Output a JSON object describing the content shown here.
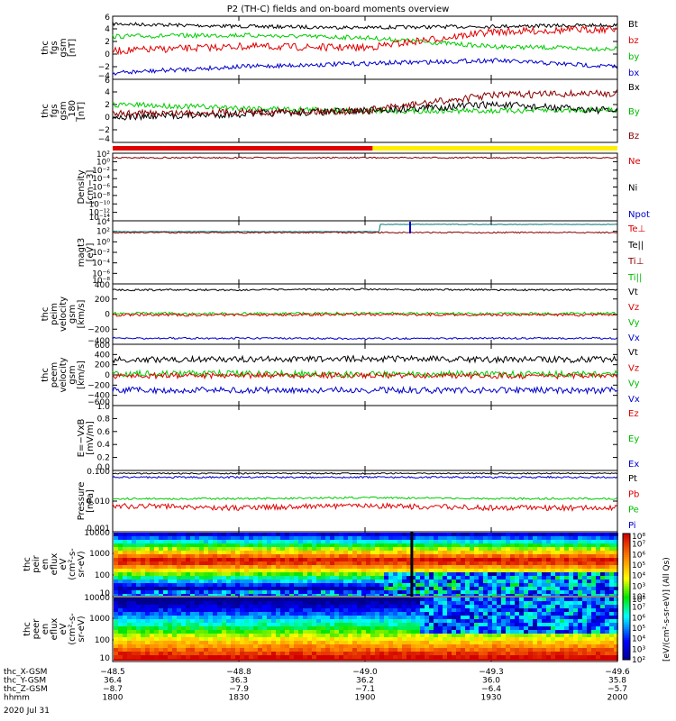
{
  "title": "P2 (TH-C) fields and on-board moments overview",
  "date": "2020 Jul 31",
  "colors": {
    "black": "#000000",
    "red": "#e00000",
    "green": "#00cc00",
    "blue": "#0000cc",
    "darkred": "#880000",
    "yellow": "#ffee00"
  },
  "panels": [
    {
      "id": "fgs",
      "ylabel": [
        "thc",
        "fgs",
        "gsm",
        "[nT]"
      ],
      "ticks": [
        "6",
        "4",
        "2",
        "0",
        "−2",
        "−4"
      ],
      "legend": [
        {
          "t": "Bt",
          "c": "#000"
        },
        {
          "t": "bz",
          "c": "#d00"
        },
        {
          "t": "by",
          "c": "#0b0"
        },
        {
          "t": "bx",
          "c": "#00c"
        }
      ]
    },
    {
      "id": "fgs180",
      "ylabel": [
        "thc",
        "fgs",
        "gsm",
        "_180",
        "[nT]"
      ],
      "ticks": [
        "6",
        "4",
        "2",
        "0",
        "−2",
        "−4"
      ],
      "legend": [
        {
          "t": "Bx",
          "c": "#000"
        },
        {
          "t": "By",
          "c": "#0b0"
        },
        {
          "t": "Bz",
          "c": "#800"
        }
      ]
    },
    {
      "id": "density",
      "ylabel": [
        "Density",
        "[cm−3]"
      ],
      "ticks": [
        "10²",
        "10⁰",
        "10⁻²",
        "10⁻⁴",
        "10⁻⁶",
        "10⁻⁸",
        "10⁻¹⁰",
        "10⁻¹²",
        "10⁻¹⁴"
      ],
      "legend": [
        {
          "t": "Ne",
          "c": "#d00"
        },
        {
          "t": "Ni",
          "c": "#000"
        },
        {
          "t": "Npot",
          "c": "#00c"
        }
      ]
    },
    {
      "id": "temp",
      "ylabel": [
        "magt3",
        "[eV]"
      ],
      "ticks": [
        "10⁴",
        "10²",
        "10⁰",
        "10⁻²",
        "10⁻⁴",
        "10⁻⁶",
        "10⁻⁸"
      ],
      "legend": [
        {
          "t": "Te⊥",
          "c": "#d00"
        },
        {
          "t": "Te||",
          "c": "#000"
        },
        {
          "t": "Ti⊥",
          "c": "#800"
        },
        {
          "t": "Ti||",
          "c": "#0b0"
        }
      ]
    },
    {
      "id": "peim",
      "ylabel": [
        "thc",
        "peim",
        "velocity",
        "gsm",
        "[km/s]"
      ],
      "ticks": [
        "400",
        "200",
        "0",
        "−200",
        "−400"
      ],
      "legend": [
        {
          "t": "Vt",
          "c": "#000"
        },
        {
          "t": "Vz",
          "c": "#d00"
        },
        {
          "t": "Vy",
          "c": "#0b0"
        },
        {
          "t": "Vx",
          "c": "#00c"
        }
      ]
    },
    {
      "id": "peem",
      "ylabel": [
        "thc",
        "peem",
        "velocity",
        "gsm",
        "[km/s]"
      ],
      "ticks": [
        "600",
        "400",
        "200",
        "0",
        "−200",
        "−400",
        "−600"
      ],
      "legend": [
        {
          "t": "Vt",
          "c": "#000"
        },
        {
          "t": "Vz",
          "c": "#d00"
        },
        {
          "t": "Vy",
          "c": "#0b0"
        },
        {
          "t": "Vx",
          "c": "#00c"
        }
      ]
    },
    {
      "id": "efield",
      "ylabel": [
        "E=−VxB",
        "[mV/m]"
      ],
      "ticks": [
        "1.0",
        "0.8",
        "0.6",
        "0.4",
        "0.2",
        "0.0"
      ],
      "legend": [
        {
          "t": "Ez",
          "c": "#d00"
        },
        {
          "t": "Ey",
          "c": "#0b0"
        },
        {
          "t": "Ex",
          "c": "#00c"
        }
      ]
    },
    {
      "id": "pressure",
      "ylabel": [
        "Pressure",
        "[nPa]"
      ],
      "ticks": [
        "0.100",
        "0.010",
        "0.001"
      ],
      "legend": [
        {
          "t": "Pt",
          "c": "#000"
        },
        {
          "t": "Pb",
          "c": "#d00"
        },
        {
          "t": "Pe",
          "c": "#0b0"
        },
        {
          "t": "Pi",
          "c": "#00c"
        }
      ]
    },
    {
      "id": "peir",
      "ylabel": [
        "thc",
        "peir",
        "en",
        "eflux",
        "eV",
        "(cm²-s-",
        "sr-eV)"
      ],
      "ticks": [
        "10000",
        "1000",
        "100",
        "10"
      ],
      "legend": []
    },
    {
      "id": "peer",
      "ylabel": [
        "thc",
        "peer",
        "en",
        "eflux",
        "eV",
        "(cm²-s-",
        "sr-eV)"
      ],
      "ticks": [
        "10000",
        "1000",
        "100",
        "10"
      ],
      "legend": []
    }
  ],
  "colorbar": {
    "ticks": [
      "10⁸",
      "10⁷",
      "10⁶",
      "10⁵",
      "10⁴",
      "10³",
      "10²"
    ],
    "label": "[eV/(cm²-s-sr-eV)] (All Qs)"
  },
  "xaxis": {
    "rows": [
      {
        "name": "thc_X-GSM",
        "vals": [
          "−48.5",
          "−48.8",
          "−49.0",
          "−49.3",
          "−49.6"
        ]
      },
      {
        "name": "thc_Y-GSM",
        "vals": [
          "36.4",
          "36.3",
          "36.2",
          "36.0",
          "35.8"
        ]
      },
      {
        "name": "thc_Z-GSM",
        "vals": [
          "−8.7",
          "−7.9",
          "−7.1",
          "−6.4",
          "−5.7"
        ]
      },
      {
        "name": "hhmm",
        "vals": [
          "1800",
          "1830",
          "1900",
          "1930",
          "2000"
        ]
      }
    ]
  },
  "chart_data": [
    {
      "type": "line",
      "title": "thc fgs gsm",
      "ylabel": "nT",
      "ylim": [
        -4,
        6
      ],
      "x": [
        "1800",
        "1830",
        "1900",
        "1930",
        "2000"
      ],
      "series": [
        {
          "name": "Bt",
          "values": [
            4.8,
            4.4,
            4.2,
            4.4,
            4.6
          ]
        },
        {
          "name": "bz",
          "values": [
            0.5,
            1.2,
            1.0,
            3.5,
            4.0
          ]
        },
        {
          "name": "by",
          "values": [
            2.8,
            3.0,
            2.6,
            1.2,
            0.8
          ]
        },
        {
          "name": "bx",
          "values": [
            -3.0,
            -2.0,
            -1.5,
            -1.0,
            -2.0
          ]
        }
      ]
    },
    {
      "type": "line",
      "title": "thc fgs gsm_180",
      "ylabel": "nT",
      "ylim": [
        -4,
        6
      ],
      "x": [
        "1800",
        "1830",
        "1900",
        "1930",
        "2000"
      ],
      "series": [
        {
          "name": "Bx",
          "values": [
            0,
            0.5,
            1.0,
            2.0,
            1.0
          ]
        },
        {
          "name": "By",
          "values": [
            2.0,
            1.5,
            1.0,
            1.0,
            1.2
          ]
        },
        {
          "name": "Bz",
          "values": [
            0.5,
            0.8,
            1.0,
            3.5,
            3.8
          ]
        }
      ]
    },
    {
      "type": "line",
      "title": "Density",
      "ylabel": "cm-3",
      "yscale": "log",
      "x": [
        "1800",
        "1830",
        "1900",
        "1930",
        "2000"
      ],
      "series": [
        {
          "name": "Ne",
          "values": [
            1,
            1,
            1,
            1,
            1
          ]
        }
      ]
    },
    {
      "type": "line",
      "title": "magt3",
      "ylabel": "eV",
      "yscale": "log",
      "x": [
        "1800",
        "1830",
        "1900",
        "1930",
        "2000"
      ],
      "series": [
        {
          "name": "Te⊥",
          "values": [
            1000,
            1000,
            1000,
            3000,
            3000
          ]
        }
      ]
    },
    {
      "type": "line",
      "title": "thc peim velocity gsm",
      "ylabel": "km/s",
      "ylim": [
        -400,
        400
      ],
      "x": [
        "1800",
        "1830",
        "1900",
        "1930",
        "2000"
      ],
      "series": [
        {
          "name": "Vt",
          "values": [
            320,
            320,
            330,
            320,
            320
          ]
        },
        {
          "name": "Vz",
          "values": [
            -10,
            -10,
            -5,
            -10,
            -10
          ]
        },
        {
          "name": "Vy",
          "values": [
            10,
            5,
            10,
            5,
            10
          ]
        },
        {
          "name": "Vx",
          "values": [
            -320,
            -320,
            -325,
            -320,
            -320
          ]
        }
      ]
    },
    {
      "type": "line",
      "title": "thc peem velocity gsm",
      "ylabel": "km/s",
      "ylim": [
        -600,
        600
      ],
      "x": [
        "1800",
        "1830",
        "1900",
        "1930",
        "2000"
      ],
      "series": [
        {
          "name": "Vt",
          "values": [
            300,
            310,
            320,
            300,
            300
          ]
        },
        {
          "name": "Vz",
          "values": [
            -20,
            -10,
            -10,
            -20,
            -20
          ]
        },
        {
          "name": "Vy",
          "values": [
            20,
            30,
            10,
            20,
            20
          ]
        },
        {
          "name": "Vx",
          "values": [
            -300,
            -300,
            -300,
            -300,
            -300
          ]
        }
      ]
    },
    {
      "type": "line",
      "title": "E=-VxB",
      "ylabel": "mV/m",
      "ylim": [
        0,
        1
      ],
      "series": []
    },
    {
      "type": "line",
      "title": "Pressure",
      "ylabel": "nPa",
      "yscale": "log",
      "ylim": [
        0.001,
        0.1
      ],
      "x": [
        "1800",
        "1830",
        "1900",
        "1930",
        "2000"
      ],
      "series": [
        {
          "name": "Pt",
          "values": [
            0.08,
            0.08,
            0.08,
            0.08,
            0.08
          ]
        },
        {
          "name": "Pb",
          "values": [
            0.007,
            0.006,
            0.007,
            0.006,
            0.006
          ]
        },
        {
          "name": "Pe",
          "values": [
            0.012,
            0.012,
            0.013,
            0.012,
            0.012
          ]
        },
        {
          "name": "Pi",
          "values": [
            0.06,
            0.06,
            0.06,
            0.06,
            0.06
          ]
        }
      ]
    },
    {
      "type": "heatmap",
      "title": "thc peir en eflux",
      "ylabel": "eV",
      "yscale": "log"
    },
    {
      "type": "heatmap",
      "title": "thc peer en eflux",
      "ylabel": "eV",
      "yscale": "log"
    }
  ]
}
